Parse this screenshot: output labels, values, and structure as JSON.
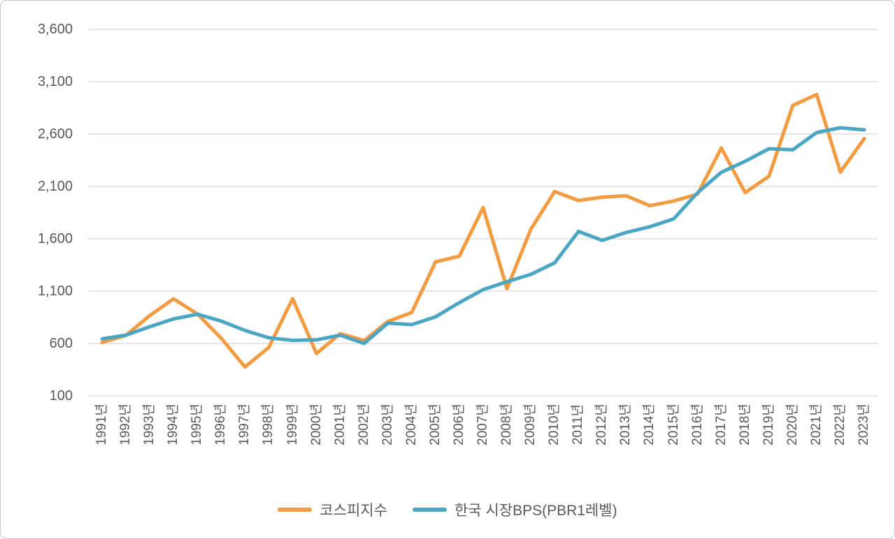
{
  "chart_data": {
    "type": "line",
    "title": "",
    "xlabel": "",
    "ylabel": "",
    "categories": [
      "1991년",
      "1992년",
      "1993년",
      "1994년",
      "1995년",
      "1996년",
      "1997년",
      "1998년",
      "1999년",
      "2000년",
      "2001년",
      "2002년",
      "2003년",
      "2004년",
      "2005년",
      "2006년",
      "2007년",
      "2008년",
      "2009년",
      "2010년",
      "2011년",
      "2012년",
      "2013년",
      "2014년",
      "2015년",
      "2016년",
      "2017년",
      "2018년",
      "2019년",
      "2020년",
      "2021년",
      "2022년",
      "2023년"
    ],
    "y_axis": {
      "min": 100,
      "max": 3600,
      "step": 500,
      "ticks": [
        {
          "label": "100",
          "value": 100
        },
        {
          "label": "600",
          "value": 600
        },
        {
          "label": "1,100",
          "value": 1100
        },
        {
          "label": "1,600",
          "value": 1600
        },
        {
          "label": "2,100",
          "value": 2100
        },
        {
          "label": "2,600",
          "value": 2600
        },
        {
          "label": "3,100",
          "value": 3100
        },
        {
          "label": "3,600",
          "value": 3600
        }
      ]
    },
    "grid": "horizontal-only",
    "legend_position": "bottom-center",
    "series": [
      {
        "name": "코스피지수",
        "color": "#F29B40",
        "values": [
          610,
          678,
          866,
          1027,
          883,
          651,
          376,
          562,
          1028,
          505,
          694,
          628,
          811,
          896,
          1379,
          1434,
          1897,
          1124,
          1690,
          2051,
          1966,
          1997,
          2011,
          1916,
          1961,
          2026,
          2467,
          2041,
          2198,
          2873,
          2978,
          2236,
          2556
        ]
      },
      {
        "name": "한국 시장BPS(PBR1레벨)",
        "color": "#4BA6C4",
        "values": [
          645,
          680,
          760,
          835,
          880,
          815,
          725,
          655,
          630,
          635,
          680,
          600,
          795,
          780,
          855,
          990,
          1115,
          1190,
          1260,
          1370,
          1670,
          1585,
          1660,
          1715,
          1790,
          2040,
          2235,
          2340,
          2460,
          2450,
          2615,
          2660,
          2640
        ]
      }
    ]
  },
  "colors": {
    "gridline": "#D6D6D6",
    "axis_text": "#595959",
    "frame_border": "#C6C6C6",
    "background": "#FFFFFF"
  }
}
